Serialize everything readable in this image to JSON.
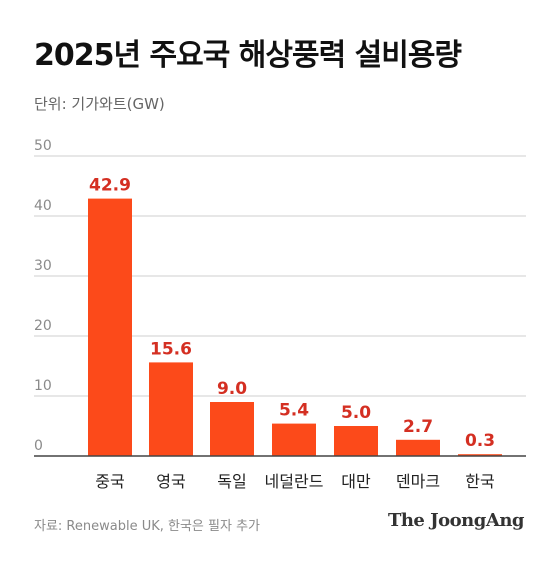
{
  "title": "2025년 주요국 해상풍력 설비용량",
  "unit_label": "단위: 기가와트(GW)",
  "source": "자료: Renewable UK, 한국은 필자 추가",
  "logo": "The JoongAng",
  "colors": {
    "bar": "#fc4a1a",
    "value_label": "#d42f22",
    "grid": "#cfcfcf",
    "axis": "#444444",
    "tick": "#8a8a8a",
    "category": "#222222"
  },
  "chart_data": {
    "type": "bar",
    "categories": [
      "중국",
      "영국",
      "독일",
      "네덜란드",
      "대만",
      "덴마크",
      "한국"
    ],
    "values": [
      42.9,
      15.6,
      9.0,
      5.4,
      5.0,
      2.7,
      0.3
    ],
    "value_labels": [
      "42.9",
      "15.6",
      "9.0",
      "5.4",
      "5.0",
      "2.7",
      "0.3"
    ],
    "y_ticks": [
      0,
      10,
      20,
      30,
      40,
      50
    ],
    "ylim": [
      0,
      50
    ],
    "grid": true,
    "legend": "none"
  }
}
